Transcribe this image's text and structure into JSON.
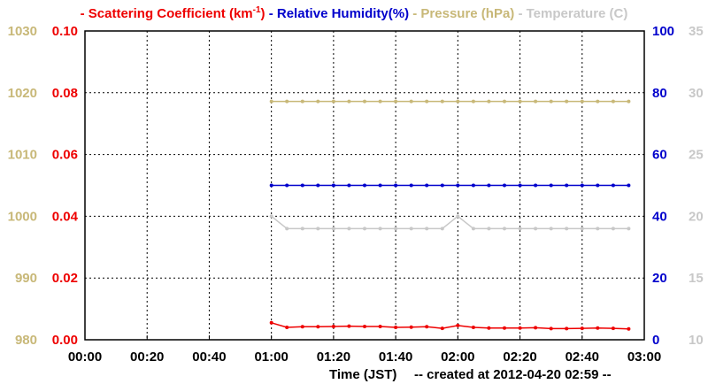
{
  "chart_data": {
    "type": "line",
    "legend_placement": "top",
    "grid": true,
    "xlabel": "Time (JST)",
    "caption": "-- created at 2012-04-20 02:59 --",
    "x_ticks": [
      "00:00",
      "00:20",
      "00:40",
      "01:00",
      "01:20",
      "01:40",
      "02:00",
      "02:20",
      "02:40",
      "03:00"
    ],
    "xlim": [
      "00:00",
      "03:00"
    ],
    "x": [
      "01:00",
      "01:05",
      "01:10",
      "01:15",
      "01:20",
      "01:25",
      "01:30",
      "01:35",
      "01:40",
      "01:45",
      "01:50",
      "01:55",
      "02:00",
      "02:05",
      "02:10",
      "02:15",
      "02:20",
      "02:25",
      "02:30",
      "02:35",
      "02:40",
      "02:45",
      "02:50",
      "02:55"
    ],
    "axes": {
      "pressure": {
        "ylim": [
          980,
          1030
        ],
        "ticks": [
          "980",
          "990",
          "1000",
          "1010",
          "1020",
          "1030"
        ],
        "color": "#c8b878"
      },
      "scattering": {
        "ylim": [
          0,
          0.1
        ],
        "ticks": [
          "0.00",
          "0.02",
          "0.04",
          "0.06",
          "0.08",
          "0.10"
        ],
        "color": "#ee0000"
      },
      "humidity": {
        "ylim": [
          0,
          100
        ],
        "ticks": [
          "0",
          "20",
          "40",
          "60",
          "80",
          "100"
        ],
        "color": "#0000cc"
      },
      "temperature": {
        "ylim": [
          10,
          35
        ],
        "ticks": [
          "10",
          "15",
          "20",
          "25",
          "30",
          "35"
        ],
        "color": "#c8c8c8"
      }
    },
    "series": [
      {
        "name": "Scattering Coefficient (km⁻¹)",
        "axis": "scattering",
        "color": "#ee0000",
        "values": [
          0.0055,
          0.004,
          0.0042,
          0.0042,
          0.0043,
          0.0044,
          0.0043,
          0.0043,
          0.004,
          0.0041,
          0.0042,
          0.0037,
          0.0046,
          0.004,
          0.0038,
          0.0038,
          0.0038,
          0.0039,
          0.0036,
          0.0036,
          0.0037,
          0.0038,
          0.0037,
          0.0035
        ]
      },
      {
        "name": "Relative Humidity(%)",
        "axis": "humidity",
        "color": "#0000cc",
        "values": [
          50,
          50,
          50,
          50,
          50,
          50,
          50,
          50,
          50,
          50,
          50,
          50,
          50,
          50,
          50,
          50,
          50,
          50,
          50,
          50,
          50,
          50,
          50,
          50
        ]
      },
      {
        "name": "Pressure (hPa)",
        "axis": "pressure",
        "color": "#c8b878",
        "values": [
          1018.6,
          1018.6,
          1018.6,
          1018.6,
          1018.6,
          1018.6,
          1018.6,
          1018.6,
          1018.6,
          1018.6,
          1018.6,
          1018.6,
          1018.6,
          1018.6,
          1018.6,
          1018.6,
          1018.6,
          1018.6,
          1018.6,
          1018.6,
          1018.6,
          1018.6,
          1018.6,
          1018.6
        ]
      },
      {
        "name": "Temperature (C)",
        "axis": "temperature",
        "color": "#c8c8c8",
        "values": [
          20,
          19,
          19,
          19,
          19,
          19,
          19,
          19,
          19,
          19,
          19,
          19,
          20,
          19,
          19,
          19,
          19,
          19,
          19,
          19,
          19,
          19,
          19,
          19
        ]
      }
    ]
  }
}
